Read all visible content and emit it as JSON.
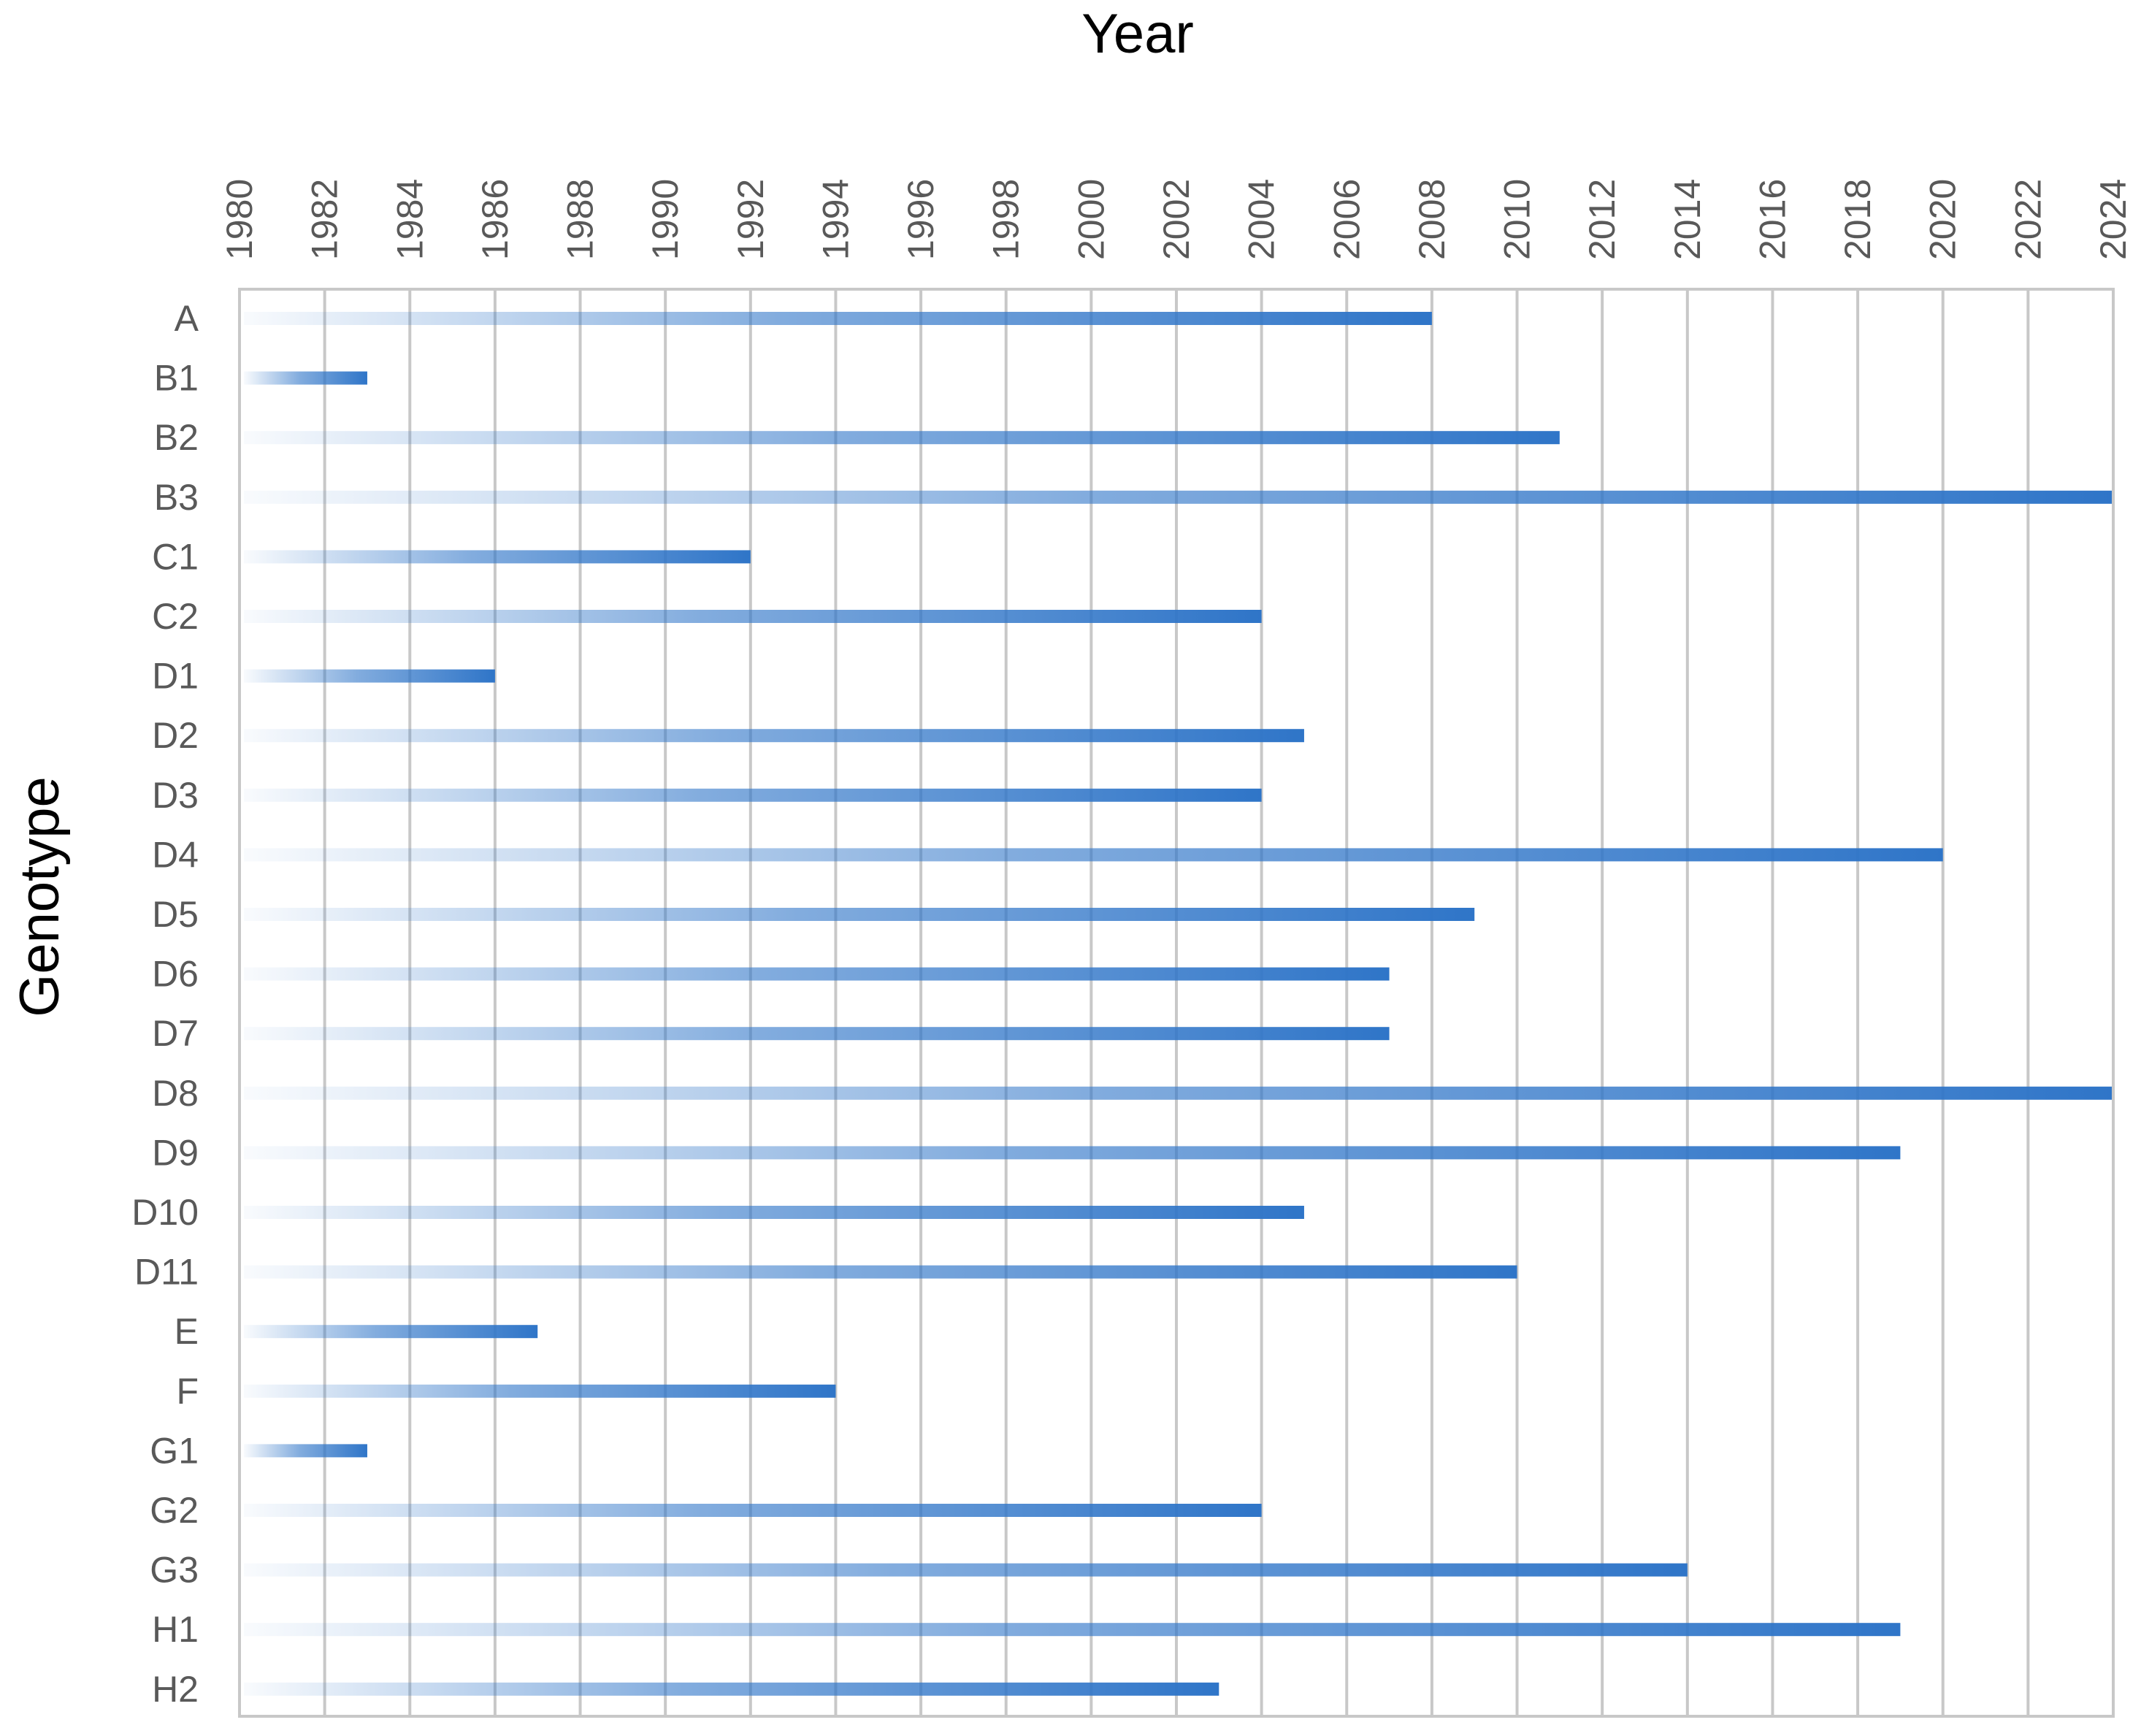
{
  "chart_data": {
    "type": "bar",
    "orientation": "horizontal",
    "xlabel": "Year",
    "ylabel": "Genotype",
    "xlim": [
      1980,
      2024
    ],
    "x_ticks": [
      "1980",
      "1982",
      "1984",
      "1986",
      "1988",
      "1990",
      "1992",
      "1994",
      "1996",
      "1998",
      "2000",
      "2002",
      "2004",
      "2006",
      "2008",
      "2010",
      "2012",
      "2014",
      "2016",
      "2018",
      "2020",
      "2022",
      "2024"
    ],
    "x_axis_position": "top",
    "grid": true,
    "bar_color": "#2f75c8",
    "bar_fill": "gradient-fade-left",
    "categories": [
      "A",
      "B1",
      "B2",
      "B3",
      "C1",
      "C2",
      "D1",
      "D2",
      "D3",
      "D4",
      "D5",
      "D6",
      "D7",
      "D8",
      "D9",
      "D10",
      "D11",
      "E",
      "F",
      "G1",
      "G2",
      "G3",
      "H1",
      "H2"
    ],
    "series": [
      {
        "start": 1980,
        "values": [
          2008,
          1983,
          2011,
          2024,
          1992,
          2004,
          1986,
          2005,
          2004,
          2020,
          2009,
          2007,
          2007,
          2024,
          2019,
          2005,
          2010,
          1987,
          1994,
          1983,
          2004,
          2014,
          2019,
          2003
        ]
      }
    ]
  }
}
